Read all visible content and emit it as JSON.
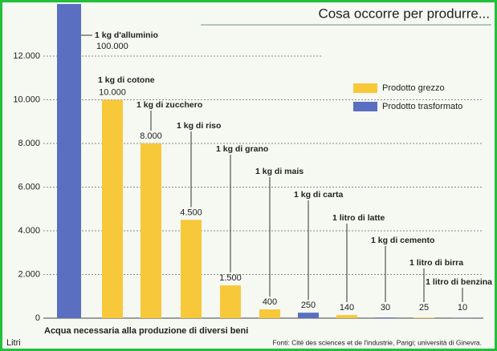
{
  "chart_data": {
    "type": "bar",
    "title": "Cosa occorre per produrre...",
    "x_label": "Acqua necessaria alla produzione di diversi beni",
    "y_label": "Litri",
    "source": "Fonti: Cité des sciences et de l'industrie, Parigi; università di Ginevra.",
    "categories": [
      "1 kg d'alluminio",
      "1 kg di cotone",
      "1 kg di zucchero",
      "1 kg di riso",
      "1 kg di grano",
      "1 kg di mais",
      "1 kg di carta",
      "1 litro di latte",
      "1 kg di cemento",
      "1 litro di birra",
      "1 litro di benzina"
    ],
    "series": [
      {
        "name": "Prodotto grezzo",
        "color": "#f7c83a",
        "values": [
          null,
          10000,
          8000,
          4500,
          1500,
          400,
          null,
          140,
          null,
          25,
          null
        ],
        "value_labels": [
          null,
          "10.000",
          "8.000",
          "4.500",
          "1.500",
          "400",
          null,
          "140",
          null,
          "25",
          null
        ]
      },
      {
        "name": "Prodotto trasformato",
        "color": "#5a6fc0",
        "values": [
          100000,
          null,
          null,
          null,
          null,
          null,
          250,
          null,
          30,
          null,
          10
        ],
        "value_labels": [
          "100.000",
          null,
          null,
          null,
          null,
          null,
          "250",
          null,
          "30",
          null,
          "10"
        ]
      }
    ],
    "ylim": [
      0,
      12000
    ],
    "yticks": [
      0,
      {
        "value": 2000,
        "label": "2.000"
      },
      {
        "value": 4000,
        "label": "4.000"
      },
      {
        "value": 6000,
        "label": "6.000"
      },
      {
        "value": 8000,
        "label": "8.000"
      },
      {
        "value": 10000,
        "label": "10.000"
      },
      {
        "value": 12000,
        "label": "12.000"
      }
    ],
    "grid": true
  }
}
